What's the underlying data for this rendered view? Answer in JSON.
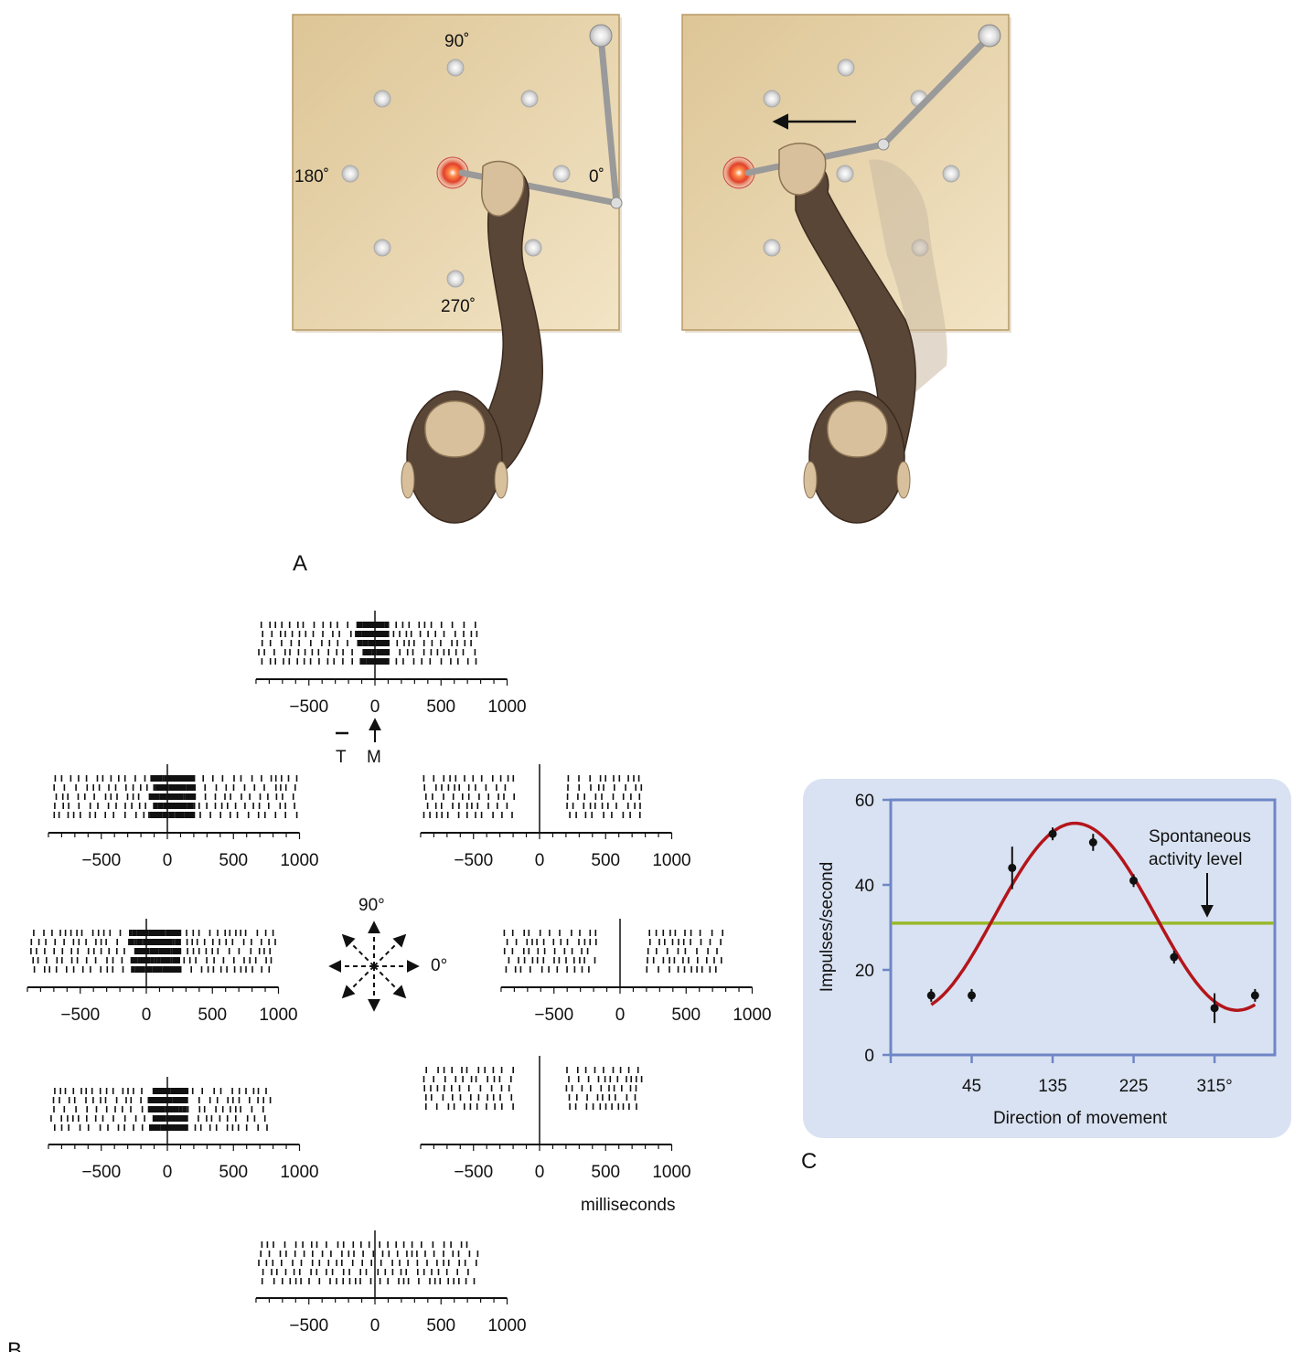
{
  "panel_a": {
    "letter": "A",
    "angles": {
      "deg90": "90˚",
      "deg180": "180˚",
      "deg0": "0˚",
      "deg270": "270˚"
    }
  },
  "panel_b": {
    "letter": "B",
    "tick_labels": [
      "−500",
      "0",
      "500",
      "1000"
    ],
    "marker_T": "T",
    "marker_M": "M",
    "units": "milliseconds",
    "compass_90": "90°",
    "compass_0": "0°"
  },
  "panel_c": {
    "letter": "C",
    "title": "",
    "ylabel": "Impulses/second",
    "xlabel": "Direction of movement",
    "annotation": [
      "Spontaneous",
      "activity level"
    ],
    "colors": {
      "curve": "#b3151b",
      "baseline": "#9ab82a",
      "panel_bg": "#d9e2f2",
      "frame": "#6f86c6"
    }
  },
  "chart_data": {
    "type": "scatter",
    "title": "",
    "xlabel": "Direction of movement",
    "ylabel": "Impulses/second",
    "x_ticks": [
      "45",
      "135",
      "225",
      "315°"
    ],
    "y_ticks": [
      "0",
      "20",
      "40",
      "60"
    ],
    "xlim": [
      -45,
      382
    ],
    "ylim": [
      0,
      60
    ],
    "points": [
      {
        "x": 0,
        "y": 14,
        "err": 1.5
      },
      {
        "x": 45,
        "y": 14,
        "err": 1.5
      },
      {
        "x": 90,
        "y": 44,
        "err": 5
      },
      {
        "x": 135,
        "y": 52,
        "err": 1.5
      },
      {
        "x": 180,
        "y": 50,
        "err": 2
      },
      {
        "x": 225,
        "y": 41,
        "err": 1.5
      },
      {
        "x": 270,
        "y": 23,
        "err": 1.5
      },
      {
        "x": 315,
        "y": 11,
        "err": 3.5
      },
      {
        "x": 360,
        "y": 14,
        "err": 1.5
      }
    ],
    "fit_curve": {
      "baseline": 32.5,
      "amplitude": 22,
      "preferred_direction": 160
    },
    "spontaneous_level": 31
  }
}
